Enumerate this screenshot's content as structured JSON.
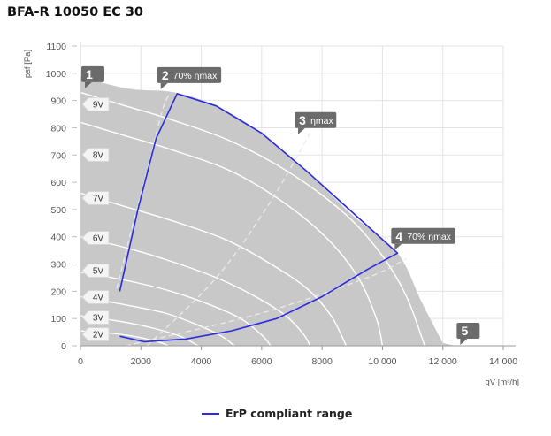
{
  "title": "BFA-R 10050 EC 30",
  "chart_data": {
    "type": "line",
    "xlabel": "qV [m³/h]",
    "ylabel": "psf [Pa]",
    "xlim": [
      0,
      14000
    ],
    "ylim": [
      0,
      1100
    ],
    "xticks": [
      0,
      2000,
      4000,
      6000,
      8000,
      10000,
      12000,
      14000
    ],
    "xtick_labels": [
      "0",
      "2000",
      "4000",
      "6000",
      "8000",
      "10 000",
      "12 000",
      "14 000"
    ],
    "yticks": [
      0,
      100,
      200,
      300,
      400,
      500,
      600,
      700,
      800,
      900,
      1000,
      1100
    ],
    "grid": true,
    "envelope": [
      [
        0,
        990
      ],
      [
        900,
        960
      ],
      [
        1800,
        940
      ],
      [
        3100,
        930
      ],
      [
        4500,
        880
      ],
      [
        6000,
        780
      ],
      [
        7500,
        640
      ],
      [
        9000,
        480
      ],
      [
        10500,
        340
      ],
      [
        11300,
        160
      ],
      [
        12000,
        10
      ],
      [
        12400,
        0
      ],
      [
        0,
        0
      ]
    ],
    "voltage_curves": [
      {
        "name": "9V",
        "points": [
          [
            0,
            930
          ],
          [
            1500,
            880
          ],
          [
            3000,
            830
          ],
          [
            5000,
            750
          ],
          [
            7000,
            630
          ],
          [
            8800,
            480
          ],
          [
            10000,
            330
          ],
          [
            10800,
            180
          ],
          [
            11400,
            0
          ]
        ]
      },
      {
        "name": "8V",
        "points": [
          [
            0,
            820
          ],
          [
            1500,
            770
          ],
          [
            3000,
            720
          ],
          [
            5000,
            640
          ],
          [
            6800,
            520
          ],
          [
            8200,
            390
          ],
          [
            9200,
            250
          ],
          [
            9800,
            100
          ],
          [
            10000,
            0
          ]
        ]
      },
      {
        "name": "7V",
        "points": [
          [
            0,
            560
          ],
          [
            1500,
            510
          ],
          [
            3000,
            460
          ],
          [
            4800,
            390
          ],
          [
            6300,
            300
          ],
          [
            7500,
            210
          ],
          [
            8300,
            110
          ],
          [
            8800,
            0
          ]
        ]
      },
      {
        "name": "6V",
        "points": [
          [
            0,
            400
          ],
          [
            1500,
            360
          ],
          [
            3000,
            310
          ],
          [
            4500,
            250
          ],
          [
            5800,
            180
          ],
          [
            6800,
            110
          ],
          [
            7400,
            40
          ],
          [
            7600,
            0
          ]
        ]
      },
      {
        "name": "5V",
        "points": [
          [
            0,
            270
          ],
          [
            1500,
            240
          ],
          [
            3000,
            200
          ],
          [
            4300,
            150
          ],
          [
            5300,
            100
          ],
          [
            6000,
            40
          ],
          [
            6300,
            0
          ]
        ]
      },
      {
        "name": "4V",
        "points": [
          [
            0,
            180
          ],
          [
            1500,
            150
          ],
          [
            2800,
            120
          ],
          [
            3800,
            80
          ],
          [
            4600,
            40
          ],
          [
            5100,
            0
          ]
        ]
      },
      {
        "name": "3V",
        "points": [
          [
            0,
            110
          ],
          [
            1300,
            90
          ],
          [
            2400,
            65
          ],
          [
            3300,
            35
          ],
          [
            3900,
            0
          ]
        ]
      },
      {
        "name": "2V",
        "points": [
          [
            0,
            55
          ],
          [
            1100,
            45
          ],
          [
            2000,
            30
          ],
          [
            2700,
            10
          ],
          [
            2900,
            0
          ]
        ]
      }
    ],
    "efficiency_lines": [
      {
        "label": "70% ηmax",
        "points": [
          [
            1200,
            210
          ],
          [
            1700,
            430
          ],
          [
            2200,
            640
          ],
          [
            2700,
            860
          ],
          [
            2950,
            925
          ]
        ]
      },
      {
        "label": "ηmax",
        "points": [
          [
            2200,
            0
          ],
          [
            4500,
            250
          ],
          [
            6300,
            530
          ],
          [
            7600,
            780
          ]
        ]
      },
      {
        "label": "70% ηmax",
        "points": [
          [
            1500,
            0
          ],
          [
            6000,
            120
          ],
          [
            9500,
            250
          ],
          [
            10800,
            320
          ]
        ]
      }
    ],
    "erp_range": {
      "name": "ErP compliant range",
      "color": "#2b2be0",
      "points": [
        [
          1300,
          200
        ],
        [
          1900,
          500
        ],
        [
          2500,
          760
        ],
        [
          3200,
          925
        ],
        [
          4500,
          880
        ],
        [
          6000,
          780
        ],
        [
          7500,
          640
        ],
        [
          9000,
          490
        ],
        [
          10500,
          340
        ],
        [
          9500,
          280
        ],
        [
          8000,
          180
        ],
        [
          6500,
          100
        ],
        [
          5000,
          55
        ],
        [
          3500,
          25
        ],
        [
          2100,
          15
        ],
        [
          1300,
          35
        ]
      ]
    },
    "markers": [
      {
        "num": "1",
        "label": "",
        "x": 0,
        "y": 1000
      },
      {
        "num": "2",
        "label": "70% ηmax",
        "x": 2950,
        "y": 925
      },
      {
        "num": "3",
        "label": "ηmax",
        "x": 7500,
        "y": 760
      },
      {
        "num": "4",
        "label": "70% ηmax",
        "x": 10700,
        "y": 335
      },
      {
        "num": "5",
        "label": "",
        "x": 12400,
        "y": 0
      }
    ],
    "legend": {
      "position": "bottom"
    }
  }
}
